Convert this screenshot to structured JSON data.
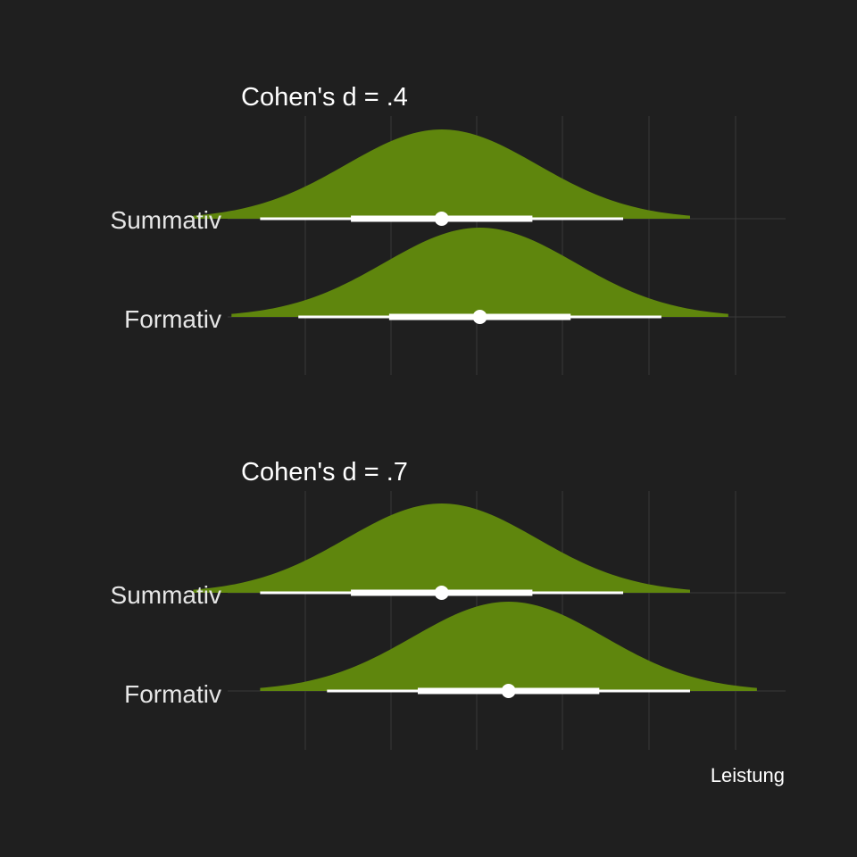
{
  "colors": {
    "background": "#1f1f1f",
    "grid": "#3a3a3a",
    "density_fill": "#5f860d",
    "interval": "#ffffff"
  },
  "chart_data": [
    {
      "type": "area",
      "subtype": "halfeye-density",
      "title": "Cohen's d = .4",
      "xlabel": "Leistung",
      "ylabel": "",
      "categories": [
        "Summativ",
        "Formativ"
      ],
      "xlim": [
        -2.1,
        3.6
      ],
      "grid": "vertical",
      "series": [
        {
          "category": "Summativ",
          "mean": 0,
          "sd": 1,
          "range": [
            -2.6,
            2.6
          ],
          "interval_66": [
            -0.95,
            0.95
          ],
          "interval_95": [
            -1.9,
            1.9
          ]
        },
        {
          "category": "Formativ",
          "mean": 0.4,
          "sd": 1,
          "range": [
            -2.2,
            3.0
          ],
          "interval_66": [
            -0.55,
            1.35
          ],
          "interval_95": [
            -1.5,
            2.3
          ]
        }
      ]
    },
    {
      "type": "area",
      "subtype": "halfeye-density",
      "title": "Cohen's d = .7",
      "xlabel": "Leistung",
      "ylabel": "",
      "categories": [
        "Summativ",
        "Formativ"
      ],
      "xlim": [
        -2.1,
        3.6
      ],
      "grid": "vertical",
      "series": [
        {
          "category": "Summativ",
          "mean": 0,
          "sd": 1,
          "range": [
            -2.6,
            2.6
          ],
          "interval_66": [
            -0.95,
            0.95
          ],
          "interval_95": [
            -1.9,
            1.9
          ]
        },
        {
          "category": "Formativ",
          "mean": 0.7,
          "sd": 1,
          "range": [
            -1.9,
            3.3
          ],
          "interval_66": [
            -0.25,
            1.65
          ],
          "interval_95": [
            -1.2,
            2.6
          ]
        }
      ]
    }
  ]
}
